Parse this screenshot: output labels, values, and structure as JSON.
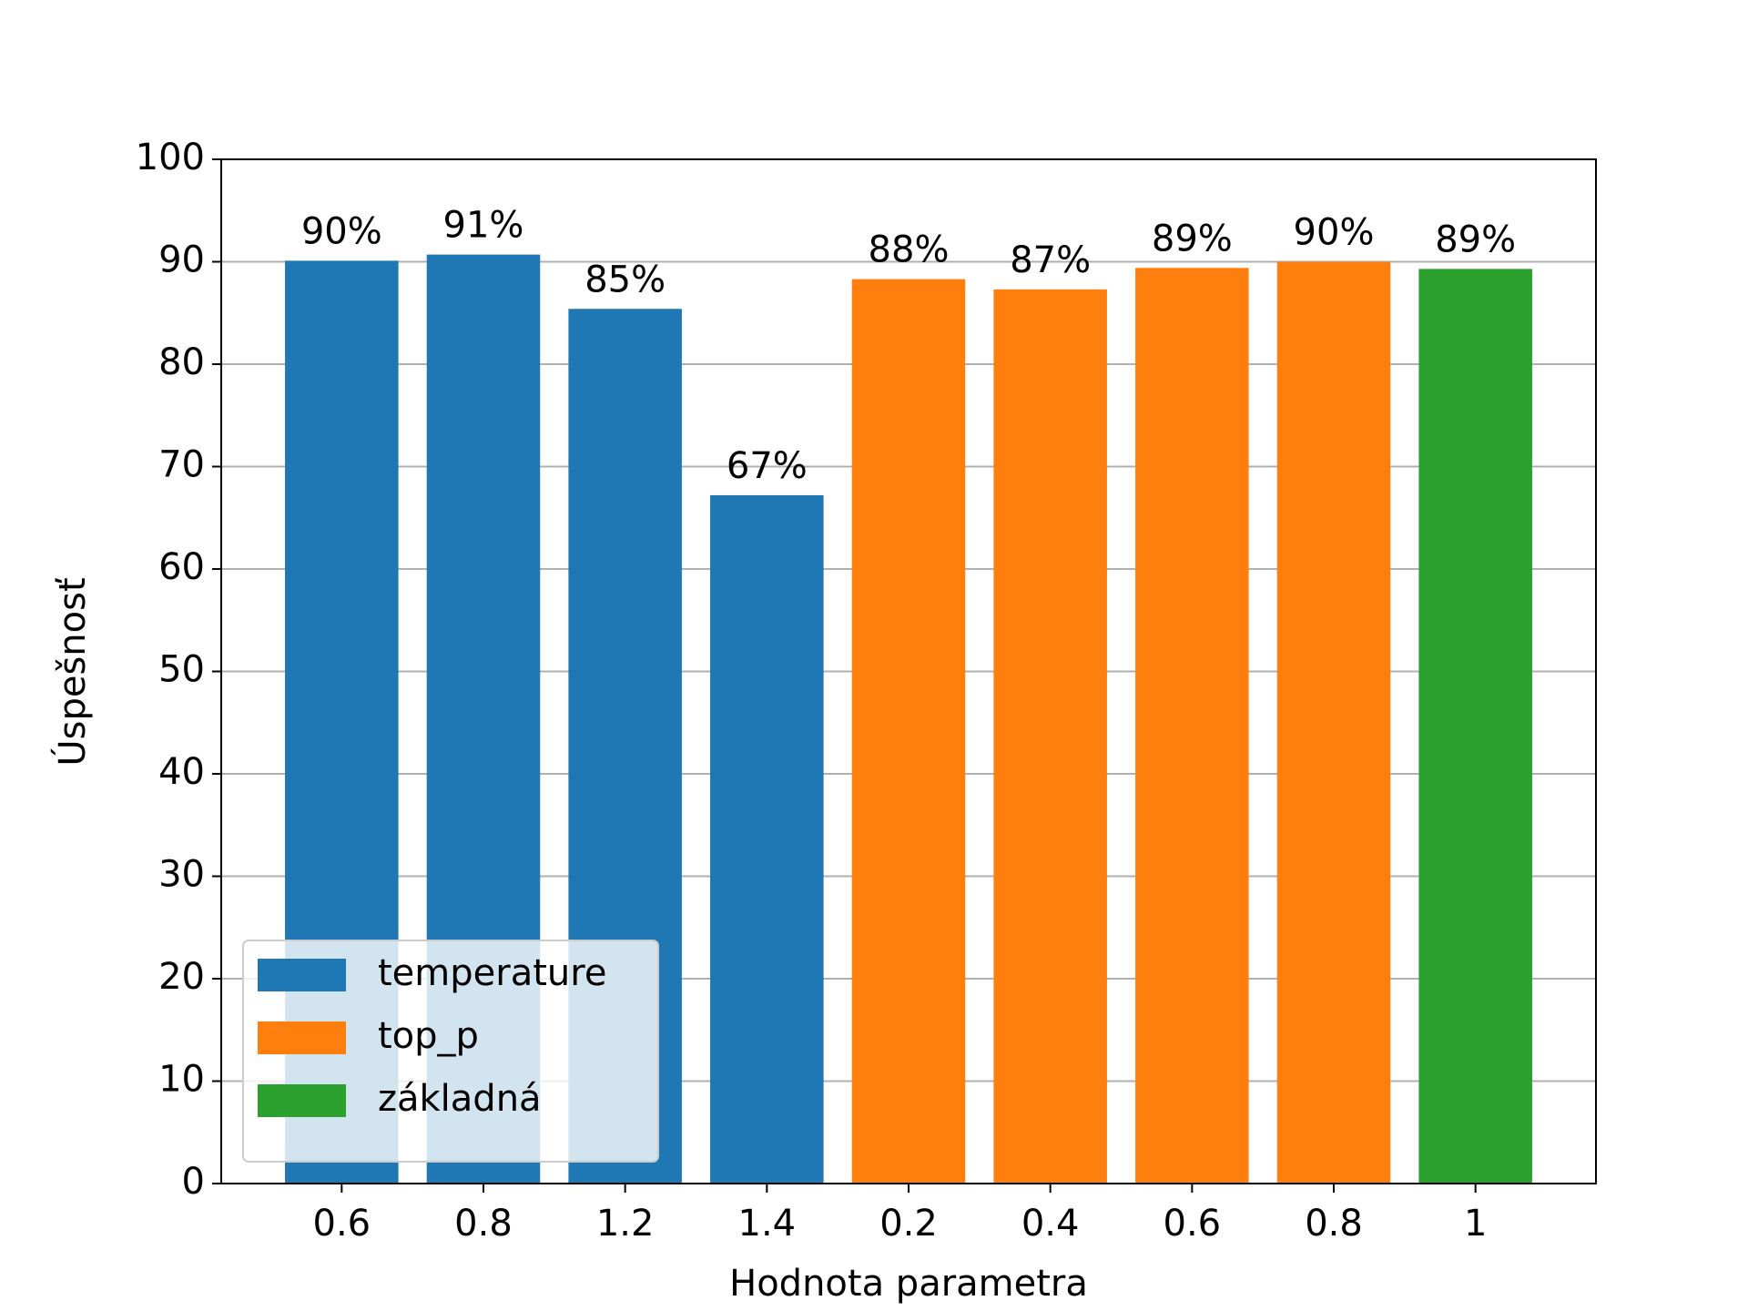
{
  "chart_data": {
    "type": "bar",
    "xlabel": "Hodnota parametra",
    "ylabel": "Úspešnosť",
    "categories": [
      "0.6",
      "0.8",
      "1.2",
      "1.4",
      "0.2",
      "0.4",
      "0.6",
      "0.8",
      "1"
    ],
    "series": [
      {
        "name": "temperature",
        "color": "#1f77b4",
        "values": [
          90.1,
          90.7,
          85.4,
          67.2,
          null,
          null,
          null,
          null,
          null
        ],
        "value_labels": [
          "90%",
          "91%",
          "85%",
          "67%",
          null,
          null,
          null,
          null,
          null
        ]
      },
      {
        "name": "top_p",
        "color": "#ff7f0e",
        "values": [
          null,
          null,
          null,
          null,
          88.3,
          87.3,
          89.4,
          90.0,
          null
        ],
        "value_labels": [
          null,
          null,
          null,
          null,
          "88%",
          "87%",
          "89%",
          "90%",
          null
        ]
      },
      {
        "name": "základná",
        "color": "#2ca02c",
        "values": [
          null,
          null,
          null,
          null,
          null,
          null,
          null,
          null,
          89.3
        ],
        "value_labels": [
          null,
          null,
          null,
          null,
          null,
          null,
          null,
          null,
          "89%"
        ]
      }
    ],
    "ylim": [
      0,
      100
    ],
    "yticks": [
      0,
      10,
      20,
      30,
      40,
      50,
      60,
      70,
      80,
      90,
      100
    ],
    "grid": true,
    "legend": "lower left"
  }
}
